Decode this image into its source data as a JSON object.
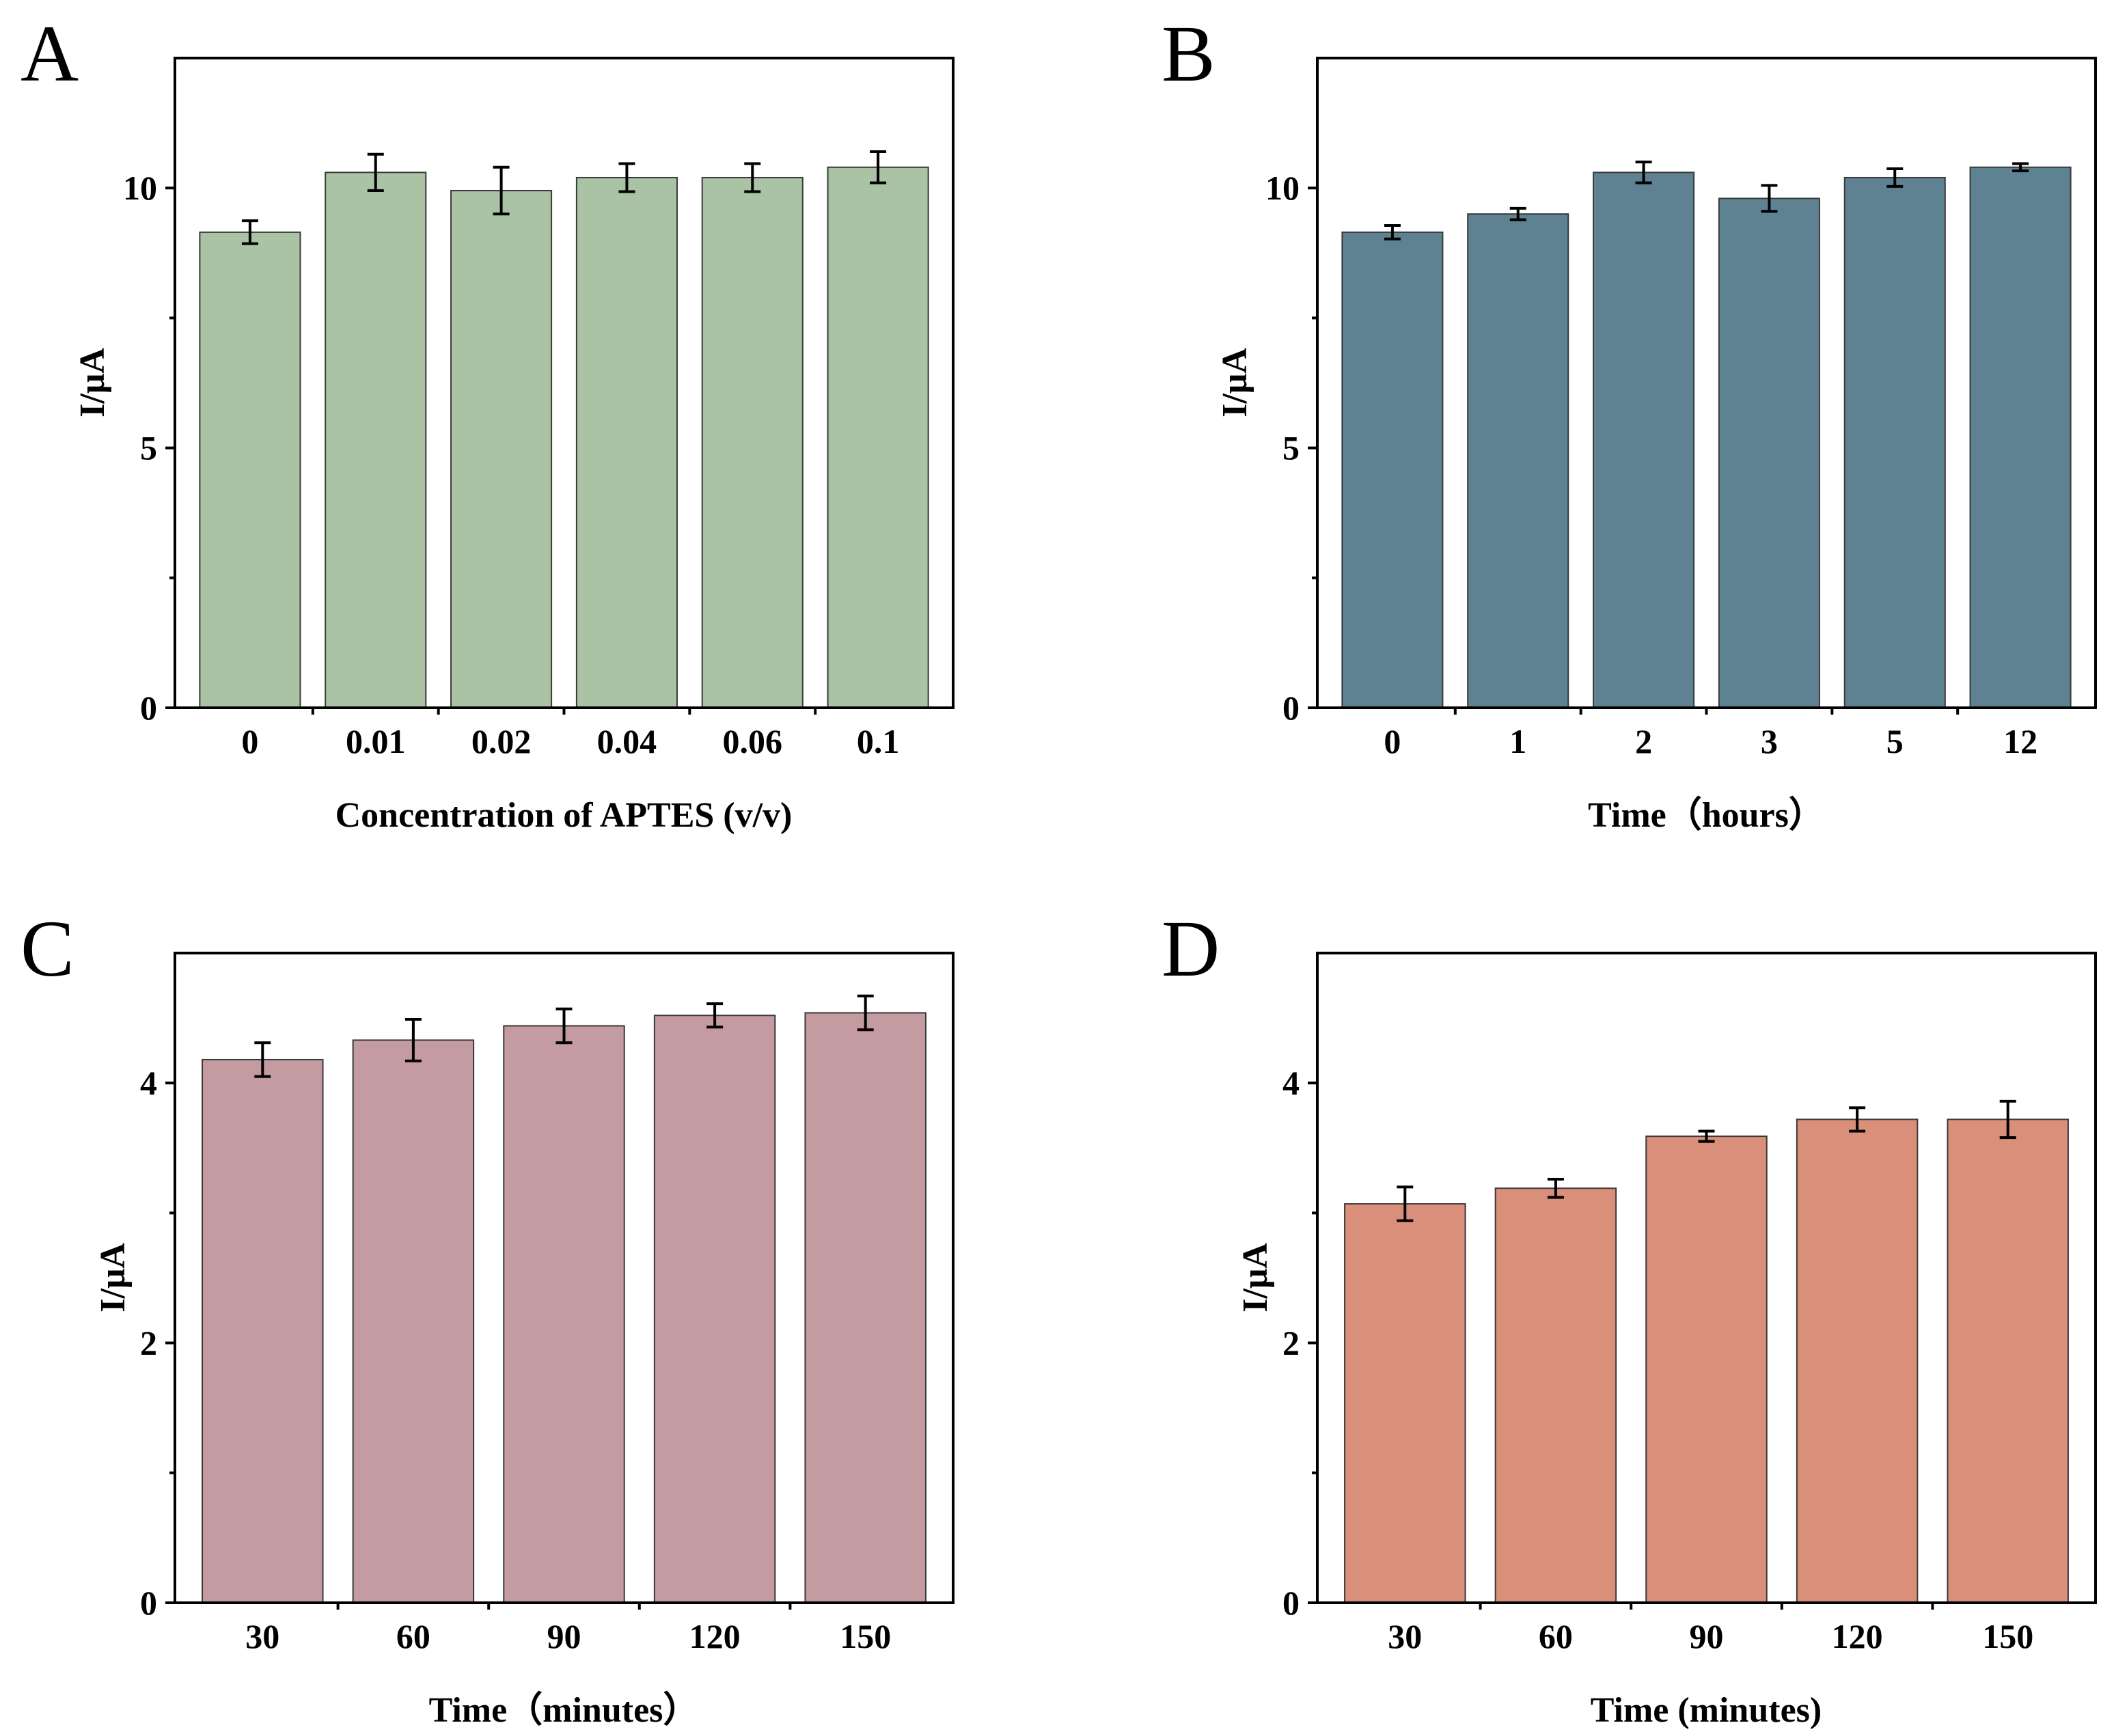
{
  "chart_data": [
    {
      "panel": "A",
      "type": "bar",
      "categories": [
        "0",
        "0.01",
        "0.02",
        "0.04",
        "0.06",
        "0.1"
      ],
      "values": [
        9.15,
        10.3,
        9.95,
        10.2,
        10.2,
        10.4
      ],
      "errors": [
        0.22,
        0.35,
        0.45,
        0.27,
        0.27,
        0.3
      ],
      "ylim": [
        0,
        12.5
      ],
      "yticks": [
        "0",
        "5",
        "10"
      ],
      "ytick_values": [
        0,
        5,
        10
      ],
      "xlabel": "Concentration of APTES (v/v)",
      "ylabel": "I/μA",
      "color": "#aac3a5"
    },
    {
      "panel": "B",
      "type": "bar",
      "categories": [
        "0",
        "1",
        "2",
        "3",
        "5",
        "12"
      ],
      "values": [
        9.15,
        9.5,
        10.3,
        9.8,
        10.2,
        10.4
      ],
      "errors": [
        0.13,
        0.11,
        0.2,
        0.25,
        0.17,
        0.07
      ],
      "ylim": [
        0,
        12.5
      ],
      "yticks": [
        "0",
        "5",
        "10"
      ],
      "ytick_values": [
        0,
        5,
        10
      ],
      "xlabel": "Time（hours）",
      "ylabel": "I/μA",
      "color": "#5f8292"
    },
    {
      "panel": "C",
      "type": "bar",
      "categories": [
        "30",
        "60",
        "90",
        "120",
        "150"
      ],
      "values": [
        4.18,
        4.33,
        4.44,
        4.52,
        4.54
      ],
      "errors": [
        0.13,
        0.16,
        0.13,
        0.09,
        0.13
      ],
      "ylim": [
        0,
        5
      ],
      "yticks": [
        "0",
        "2",
        "4"
      ],
      "ytick_values": [
        0,
        2,
        4
      ],
      "xlabel": "Time（minutes）",
      "ylabel": "I/μA",
      "color": "#c49ba1"
    },
    {
      "panel": "D",
      "type": "bar",
      "categories": [
        "30",
        "60",
        "90",
        "120",
        "150"
      ],
      "values": [
        3.07,
        3.19,
        3.59,
        3.72,
        3.72
      ],
      "errors": [
        0.13,
        0.07,
        0.04,
        0.09,
        0.14
      ],
      "ylim": [
        0,
        5
      ],
      "yticks": [
        "0",
        "2",
        "4"
      ],
      "ytick_values": [
        0,
        2,
        4
      ],
      "xlabel": "Time (minutes)",
      "ylabel": "I/μA",
      "color": "#d98f79"
    }
  ]
}
